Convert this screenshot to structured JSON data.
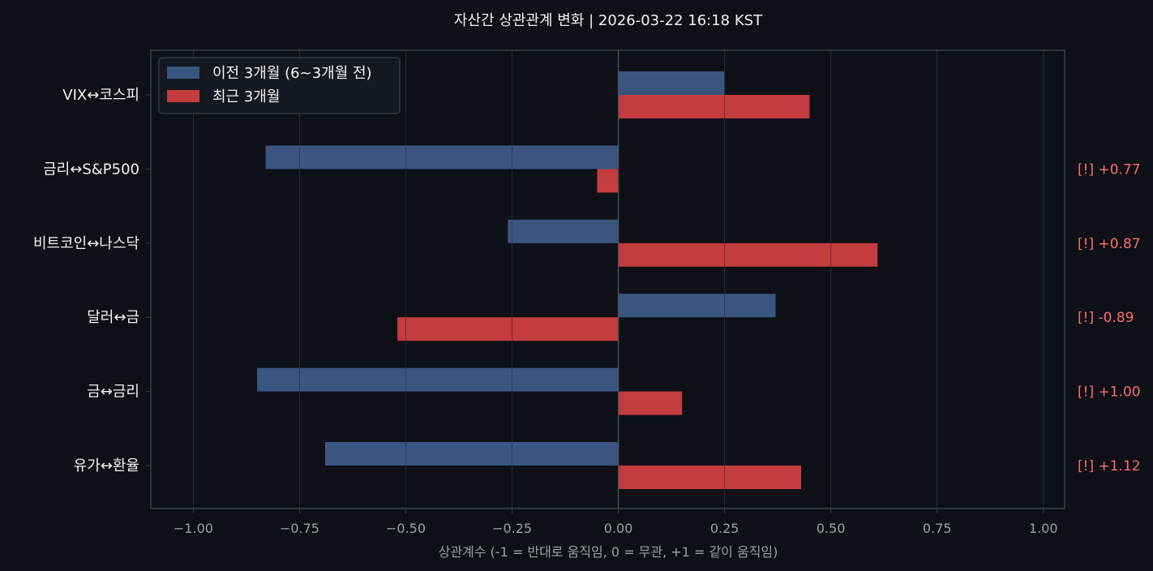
{
  "chart_data": {
    "type": "bar",
    "orientation": "horizontal",
    "title": "자산간 상관관계 변화 | 2026-03-22 16:18 KST",
    "xlabel": "상관계수 (-1 = 반대로 움직임, 0 = 무관, +1 = 같이 움직임)",
    "ylabel": "",
    "xlim": [
      -1.1,
      1.05
    ],
    "xticks": [
      -1.0,
      -0.75,
      -0.5,
      -0.25,
      0.0,
      0.25,
      0.5,
      0.75,
      1.0
    ],
    "xtick_labels": [
      "−1.00",
      "−0.75",
      "−0.50",
      "−0.25",
      "0.00",
      "0.25",
      "0.50",
      "0.75",
      "1.00"
    ],
    "grid": true,
    "legend_position": "top-left",
    "categories": [
      "VIX↔코스피",
      "금리↔S&P500",
      "비트코인↔나스닥",
      "달러↔금",
      "금↔금리",
      "유가↔환율"
    ],
    "series": [
      {
        "name": "이전 3개월 (6~3개월 전)",
        "color": "#3a5580",
        "values": [
          0.25,
          -0.83,
          -0.26,
          0.37,
          -0.85,
          -0.69
        ]
      },
      {
        "name": "최근 3개월",
        "color": "#c43c3e",
        "values": [
          0.45,
          -0.05,
          0.61,
          -0.52,
          0.15,
          0.43
        ]
      }
    ],
    "annotations": [
      "",
      "[!] +0.77",
      "[!] +0.87",
      "[!] -0.89",
      "[!] +1.00",
      "[!] +1.12"
    ],
    "annotation_color": "#ff6b6b"
  },
  "colors": {
    "background": "#0d1017",
    "axes_frame": "#3a3f47",
    "grid": "#252a33",
    "zero_line": "#4a4f57"
  }
}
